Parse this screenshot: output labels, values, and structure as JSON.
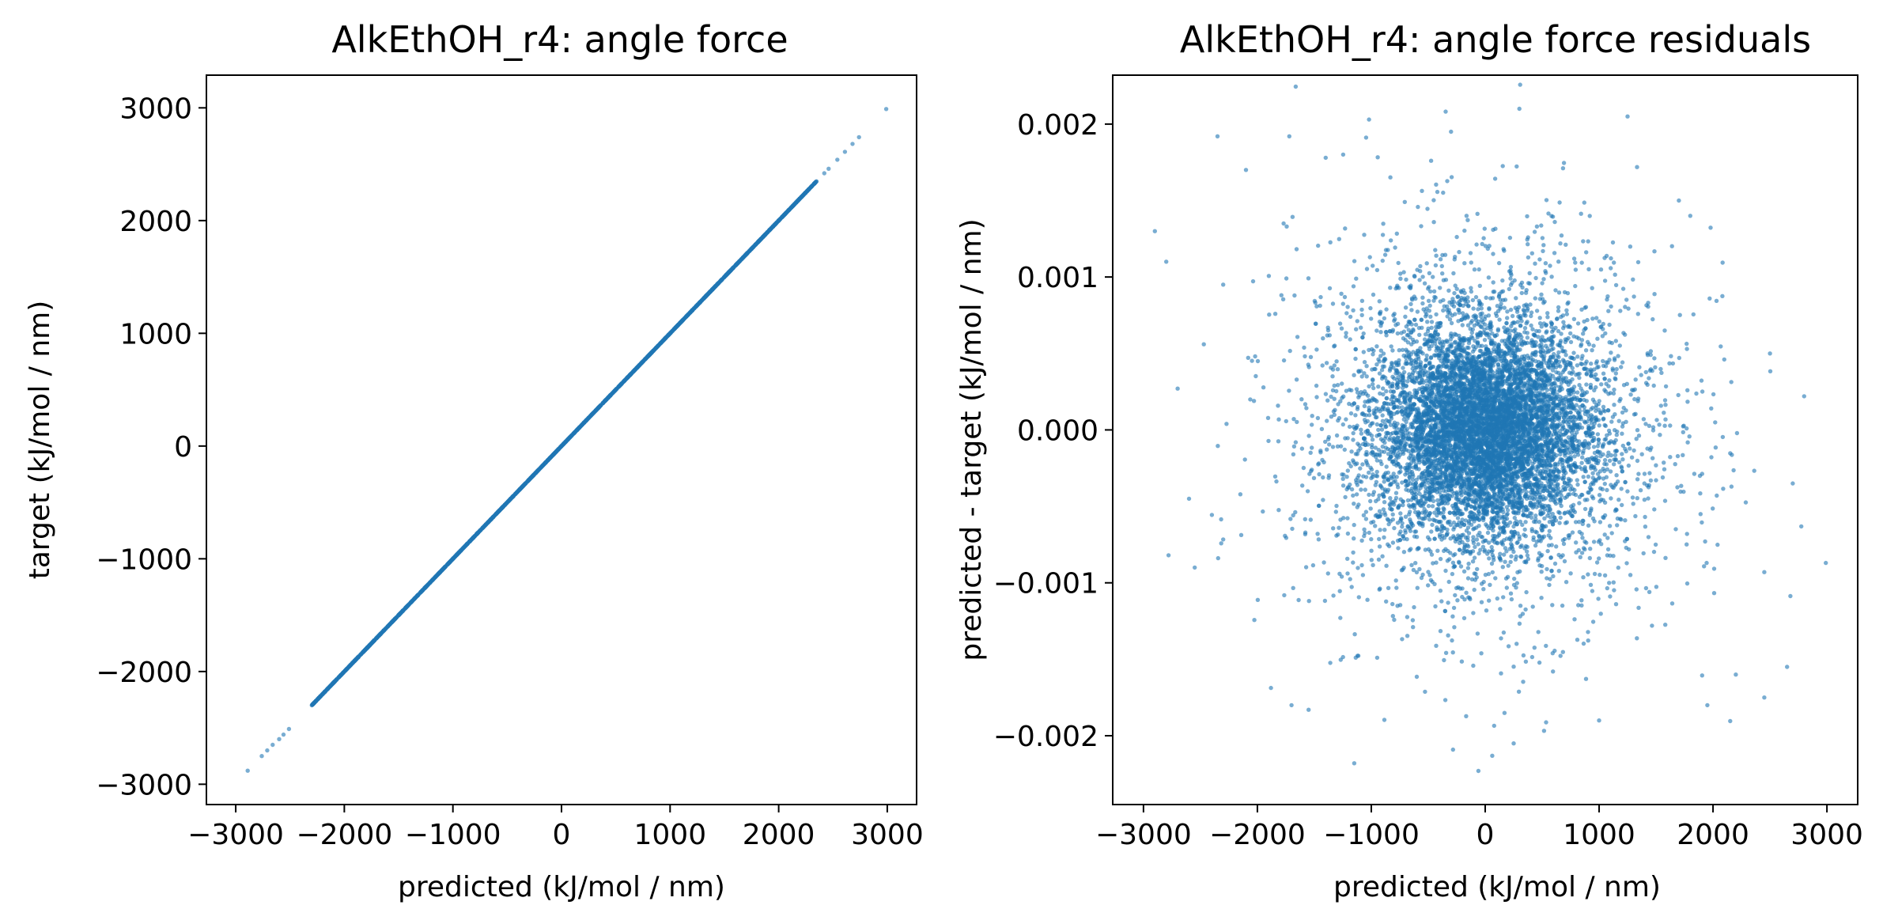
{
  "figure": {
    "background": "#ffffff",
    "point_color": "#1f77b4"
  },
  "chart_data": [
    {
      "type": "scatter",
      "title": "AlkEthOH_r4: angle force",
      "xlabel": "predicted (kJ/mol / nm)",
      "ylabel": "target (kJ/mol / nm)",
      "xlim": [
        -3270,
        3270
      ],
      "ylim": [
        -3180,
        3290
      ],
      "xticks": [
        -3000,
        -2000,
        -1000,
        0,
        1000,
        2000,
        3000
      ],
      "xtick_labels": [
        "−3000",
        "−2000",
        "−1000",
        "0",
        "1000",
        "2000",
        "3000"
      ],
      "yticks": [
        -3000,
        -2000,
        -1000,
        0,
        1000,
        2000,
        3000
      ],
      "ytick_labels": [
        "−3000",
        "−2000",
        "−1000",
        "0",
        "1000",
        "2000",
        "3000"
      ],
      "grid": false,
      "legend": null,
      "series": [
        {
          "description": "dense points lying on the identity line y = x",
          "relation": "y = x",
          "dense_x_range": [
            -2300,
            2350
          ],
          "points": [
            [
              -2890,
              -2880
            ],
            [
              -2760,
              -2750
            ],
            [
              -2710,
              -2700
            ],
            [
              -2660,
              -2650
            ],
            [
              -2600,
              -2600
            ],
            [
              -2560,
              -2560
            ],
            [
              -2510,
              -2510
            ],
            [
              2420,
              2420
            ],
            [
              2460,
              2460
            ],
            [
              2540,
              2540
            ],
            [
              2610,
              2610
            ],
            [
              2680,
              2680
            ],
            [
              2740,
              2740
            ],
            [
              2990,
              2990
            ]
          ]
        }
      ]
    },
    {
      "type": "scatter",
      "title": "AlkEthOH_r4: angle force residuals",
      "xlabel": "predicted (kJ/mol / nm)",
      "ylabel": "predicted - target (kJ/mol / nm)",
      "xlim": [
        -3270,
        3270
      ],
      "ylim": [
        -0.00245,
        0.00232
      ],
      "xticks": [
        -3000,
        -2000,
        -1000,
        0,
        1000,
        2000,
        3000
      ],
      "xtick_labels": [
        "−3000",
        "−2000",
        "−1000",
        "0",
        "1000",
        "2000",
        "3000"
      ],
      "yticks": [
        -0.002,
        -0.001,
        0.0,
        0.001,
        0.002
      ],
      "ytick_labels": [
        "−0.002",
        "−0.001",
        "0.000",
        "0.001",
        "0.002"
      ],
      "grid": false,
      "legend": null,
      "series": [
        {
          "description": "residual cloud centred at (0, 0)",
          "center": [
            0,
            0
          ],
          "dense_core_half_width": [
            800,
            0.0006
          ],
          "outer_extent_x": [
            -3000,
            3000
          ],
          "outer_extent_y": [
            -0.0022,
            0.0021
          ],
          "points": [
            [
              -2900,
              0.0013
            ],
            [
              -2800,
              0.0011
            ],
            [
              -2350,
              0.00192
            ],
            [
              -2780,
              -0.00082
            ],
            [
              -2600,
              -0.00045
            ],
            [
              -2550,
              -0.0009
            ],
            [
              -2100,
              0.0017
            ],
            [
              -1720,
              0.00192
            ],
            [
              -1400,
              0.00178
            ],
            [
              -1020,
              0.00203
            ],
            [
              -300,
              0.00195
            ],
            [
              300,
              0.0021
            ],
            [
              1250,
              0.00205
            ],
            [
              1700,
              0.0015
            ],
            [
              1800,
              0.0014
            ],
            [
              2800,
              0.00022
            ],
            [
              2700,
              -0.00035
            ],
            [
              2990,
              -0.00087
            ],
            [
              2450,
              -0.00093
            ],
            [
              2200,
              -0.0016
            ],
            [
              2450,
              -0.00175
            ],
            [
              2650,
              -0.00155
            ],
            [
              1950,
              -0.0018
            ],
            [
              1000,
              -0.0019
            ],
            [
              -1150,
              -0.00218
            ],
            [
              -60,
              -0.00223
            ],
            [
              250,
              -0.00205
            ],
            [
              -1700,
              -0.0018
            ],
            [
              -1550,
              -0.00183
            ],
            [
              -2300,
              0.00095
            ],
            [
              -2700,
              0.00027
            ],
            [
              2500,
              0.0005
            ]
          ]
        }
      ]
    }
  ]
}
